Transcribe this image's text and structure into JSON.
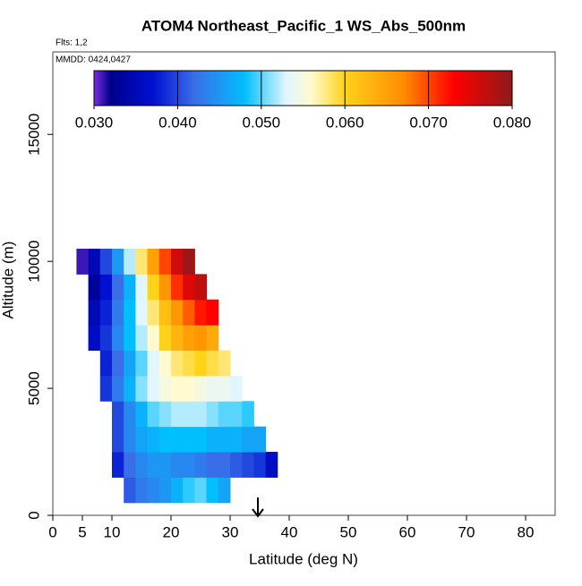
{
  "chart_data": {
    "type": "heatmap",
    "title": "ATOM4 Northeast_Pacific_1 WS_Abs_500nm",
    "subtitle": "Flts: 1,2",
    "annotation": "MMDD: 0424,0427",
    "x_label": "Latitude (deg N)",
    "y_label": "Altitude (m)",
    "xlim": [
      0,
      85
    ],
    "xticks": [
      0,
      5,
      10,
      20,
      30,
      40,
      50,
      60,
      70,
      80
    ],
    "ylim": [
      0,
      18250
    ],
    "yticks": [
      0,
      5000,
      10000,
      15000
    ],
    "x": [
      5,
      7,
      9,
      11,
      13,
      15,
      17,
      19,
      21,
      23,
      25,
      27,
      29,
      31,
      33,
      35,
      37,
      39
    ],
    "y": [
      1000,
      2000,
      3000,
      4000,
      5000,
      6000,
      7000,
      8000,
      9000,
      10000
    ],
    "values": [
      [
        null,
        null,
        null,
        null,
        0.041,
        0.043,
        0.044,
        0.045,
        0.047,
        0.049,
        0.05,
        0.048,
        0.046,
        null,
        null,
        null,
        null,
        null
      ],
      [
        null,
        null,
        null,
        0.038,
        0.042,
        0.044,
        0.045,
        0.045,
        0.044,
        0.044,
        0.043,
        0.042,
        0.042,
        0.041,
        0.04,
        0.039,
        0.036,
        null
      ],
      [
        null,
        null,
        null,
        0.04,
        0.044,
        0.046,
        0.047,
        0.048,
        0.048,
        0.048,
        0.048,
        0.047,
        0.047,
        0.047,
        0.046,
        0.046,
        null,
        null
      ],
      [
        null,
        null,
        null,
        0.04,
        0.044,
        0.047,
        0.05,
        0.051,
        0.052,
        0.052,
        0.052,
        0.051,
        0.05,
        0.05,
        0.049,
        null,
        null,
        null
      ],
      [
        null,
        null,
        0.039,
        0.043,
        0.047,
        0.051,
        0.053,
        0.055,
        0.056,
        0.056,
        0.055,
        0.054,
        0.054,
        0.053,
        null,
        null,
        null,
        null
      ],
      [
        null,
        null,
        0.038,
        0.042,
        0.046,
        0.05,
        0.053,
        0.056,
        0.058,
        0.059,
        0.06,
        0.059,
        0.058,
        null,
        null,
        null,
        null,
        null
      ],
      [
        null,
        0.036,
        0.039,
        0.044,
        0.048,
        0.052,
        0.056,
        0.06,
        0.063,
        0.065,
        0.066,
        0.064,
        null,
        null,
        null,
        null,
        null,
        null
      ],
      [
        null,
        0.035,
        0.038,
        0.043,
        0.048,
        0.053,
        0.058,
        0.062,
        0.066,
        0.069,
        0.072,
        0.073,
        null,
        null,
        null,
        null,
        null,
        null
      ],
      [
        null,
        0.033,
        0.037,
        0.042,
        0.047,
        0.053,
        0.06,
        0.066,
        0.071,
        0.075,
        0.077,
        null,
        null,
        null,
        null,
        null,
        null,
        null
      ],
      [
        0.031,
        0.035,
        0.04,
        0.045,
        0.052,
        0.058,
        0.065,
        0.07,
        0.076,
        0.079,
        null,
        null,
        null,
        null,
        null,
        null,
        null,
        null
      ]
    ],
    "colorbar_lim": [
      0.03,
      0.08
    ],
    "colorbar_ticks": [
      {
        "value": 0.03,
        "label": "0.030"
      },
      {
        "value": 0.04,
        "label": "0.040"
      },
      {
        "value": 0.05,
        "label": "0.050"
      },
      {
        "value": 0.06,
        "label": "0.060"
      },
      {
        "value": 0.07,
        "label": "0.070"
      },
      {
        "value": 0.08,
        "label": "0.080"
      }
    ],
    "colorscale": [
      [
        0.03,
        "#7a2ee0"
      ],
      [
        0.032,
        "#00008b"
      ],
      [
        0.037,
        "#0010d0"
      ],
      [
        0.042,
        "#3a6ee8"
      ],
      [
        0.048,
        "#00bfff"
      ],
      [
        0.053,
        "#e2f6ff"
      ],
      [
        0.056,
        "#fffad0"
      ],
      [
        0.06,
        "#ffd31a"
      ],
      [
        0.067,
        "#ff8c00"
      ],
      [
        0.073,
        "#ff0000"
      ],
      [
        0.08,
        "#8e1a1a"
      ]
    ]
  }
}
